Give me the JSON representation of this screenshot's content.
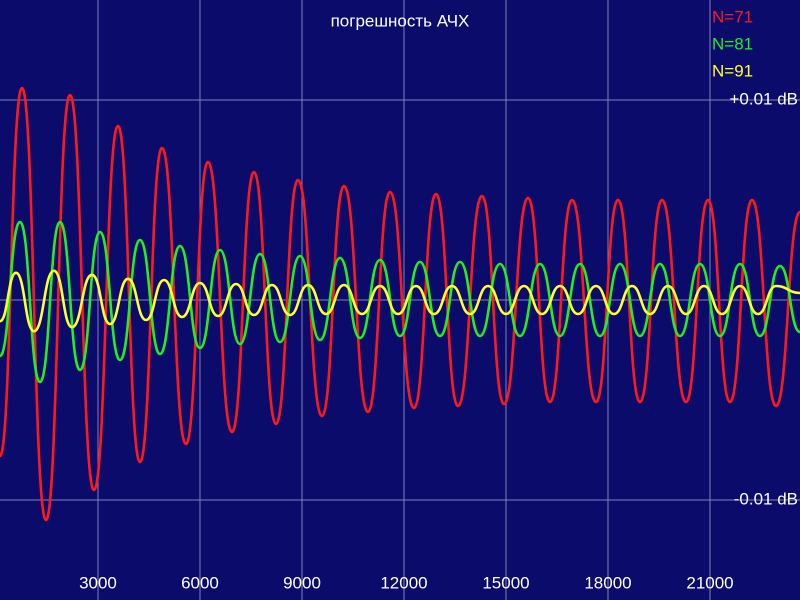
{
  "chart_data": {
    "type": "line",
    "title": "погрешность АЧХ",
    "xlim": [
      118,
      23647
    ],
    "ylim": [
      -0.015,
      0.015
    ],
    "xticks": [
      3000,
      6000,
      9000,
      12000,
      15000,
      18000,
      21000
    ],
    "yticks": [
      {
        "value": 0.01,
        "label": "+0.01 dB"
      },
      {
        "value": 0,
        "label": null
      },
      {
        "value": -0.01,
        "label": "-0.01 dB"
      }
    ],
    "grid": true,
    "legend": "upper right",
    "series": [
      {
        "name": "N=71",
        "color": "#ff1a1a",
        "x": [
          118,
          765,
          1470,
          2176,
          2882,
          3588,
          4235,
          4882,
          5588,
          6235,
          6941,
          7588,
          8235,
          8882,
          9588,
          10235,
          10941,
          11588,
          12294,
          12941,
          13588,
          14294,
          14941,
          15647,
          16294,
          16941,
          17647,
          18294,
          18941,
          19588,
          20294,
          20941,
          21588,
          22235,
          22941,
          23647
        ],
        "values": [
          -0.0078,
          0.0106,
          -0.011,
          0.01025,
          -0.0095,
          0.0087,
          -0.0081,
          0.0076,
          -0.0072,
          0.0069,
          -0.0066,
          0.0064,
          -0.0062,
          0.006,
          -0.0058,
          0.0057,
          -0.0056,
          0.0054,
          -0.0054,
          0.0053,
          -0.0053,
          0.0052,
          -0.0052,
          0.0051,
          -0.0051,
          0.005,
          -0.0051,
          0.005,
          -0.0051,
          0.005,
          -0.0051,
          0.005,
          -0.0051,
          0.005,
          -0.0053,
          0.0044
        ]
      },
      {
        "name": "N=81",
        "color": "#22ee22",
        "x": [
          118,
          706,
          1294,
          1883,
          2471,
          3059,
          3647,
          4235,
          4824,
          5412,
          6000,
          6588,
          7176,
          7765,
          8353,
          8941,
          9529,
          10117,
          10706,
          11294,
          11882,
          12470,
          13058,
          13647,
          14235,
          14823,
          15411,
          16000,
          16588,
          17176,
          17764,
          18352,
          18940,
          19529,
          20117,
          20705,
          21293,
          21881,
          22470,
          23058,
          23647
        ],
        "values": [
          -0.0028,
          0.0039,
          -0.0041,
          0.0039,
          -0.0035,
          0.0034,
          -0.003,
          0.003,
          -0.0027,
          0.0027,
          -0.0024,
          0.0025,
          -0.0022,
          0.0023,
          -0.0021,
          0.0022,
          -0.002,
          0.0021,
          -0.0019,
          0.002,
          -0.0018,
          0.0019,
          -0.0018,
          0.0019,
          -0.0018,
          0.0018,
          -0.0018,
          0.0018,
          -0.0018,
          0.0018,
          -0.0018,
          0.0018,
          -0.0018,
          0.0018,
          -0.0018,
          0.0018,
          -0.0018,
          0.0018,
          -0.0018,
          0.0017,
          -0.0016
        ]
      },
      {
        "name": "N=91",
        "color": "#ffff33",
        "x": [
          118,
          588,
          1118,
          1706,
          2235,
          2823,
          3353,
          3882,
          4412,
          4941,
          5470,
          6000,
          6529,
          7059,
          7588,
          8117,
          8647,
          9176,
          9706,
          10235,
          10764,
          11294,
          11823,
          12353,
          12882,
          13411,
          13941,
          14470,
          15000,
          15529,
          16058,
          16588,
          17117,
          17647,
          18176,
          18705,
          19235,
          19764,
          20294,
          20823,
          21352,
          21882,
          22411,
          22941,
          23647
        ],
        "values": [
          -0.00106,
          0.00136,
          -0.00156,
          0.00146,
          -0.00136,
          0.00126,
          -0.0012,
          0.00106,
          -0.001,
          0.001,
          -0.00085,
          0.00085,
          -0.0008,
          0.0008,
          -0.00075,
          0.00075,
          -0.00075,
          0.00075,
          -0.0007,
          0.00075,
          -0.0007,
          0.0007,
          -0.0007,
          0.0007,
          -0.0007,
          0.0007,
          -0.0007,
          0.0007,
          -0.0007,
          0.0007,
          -0.0007,
          0.0007,
          -0.0007,
          0.0007,
          -0.0007,
          0.0007,
          -0.0007,
          0.0007,
          -0.0007,
          0.0007,
          -0.0007,
          0.0007,
          -0.0007,
          0.0007,
          0.00035
        ]
      }
    ]
  }
}
